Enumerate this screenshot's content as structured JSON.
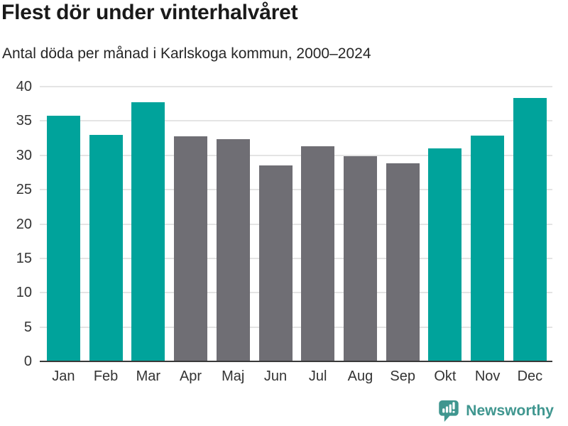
{
  "chart_data": {
    "type": "bar",
    "title": "Flest dör under vinterhalvåret",
    "subtitle": "Antal döda per månad i Karlskoga kommun, 2000–2024",
    "categories": [
      "Jan",
      "Feb",
      "Mar",
      "Apr",
      "Maj",
      "Jun",
      "Jul",
      "Aug",
      "Sep",
      "Okt",
      "Nov",
      "Dec"
    ],
    "values": [
      35.8,
      33.0,
      37.7,
      32.8,
      32.4,
      28.5,
      31.3,
      29.9,
      28.8,
      31.0,
      32.9,
      38.3
    ],
    "bar_roles": [
      "highlight",
      "highlight",
      "highlight",
      "muted",
      "muted",
      "muted",
      "muted",
      "muted",
      "muted",
      "highlight",
      "highlight",
      "highlight"
    ],
    "xlabel": "",
    "ylabel": "",
    "ylim": [
      0,
      40
    ],
    "yticks": [
      0,
      5,
      10,
      15,
      20,
      25,
      30,
      35,
      40
    ],
    "grid": true,
    "legend": "none",
    "colors": {
      "highlight": "#00a39b",
      "muted": "#6f6e74",
      "gridline": "#e4e4e4",
      "axis": "#3a3a3a",
      "tick_label": "#333333"
    }
  },
  "footer": {
    "brand": "Newsworthy",
    "brand_color": "#3f968f"
  }
}
